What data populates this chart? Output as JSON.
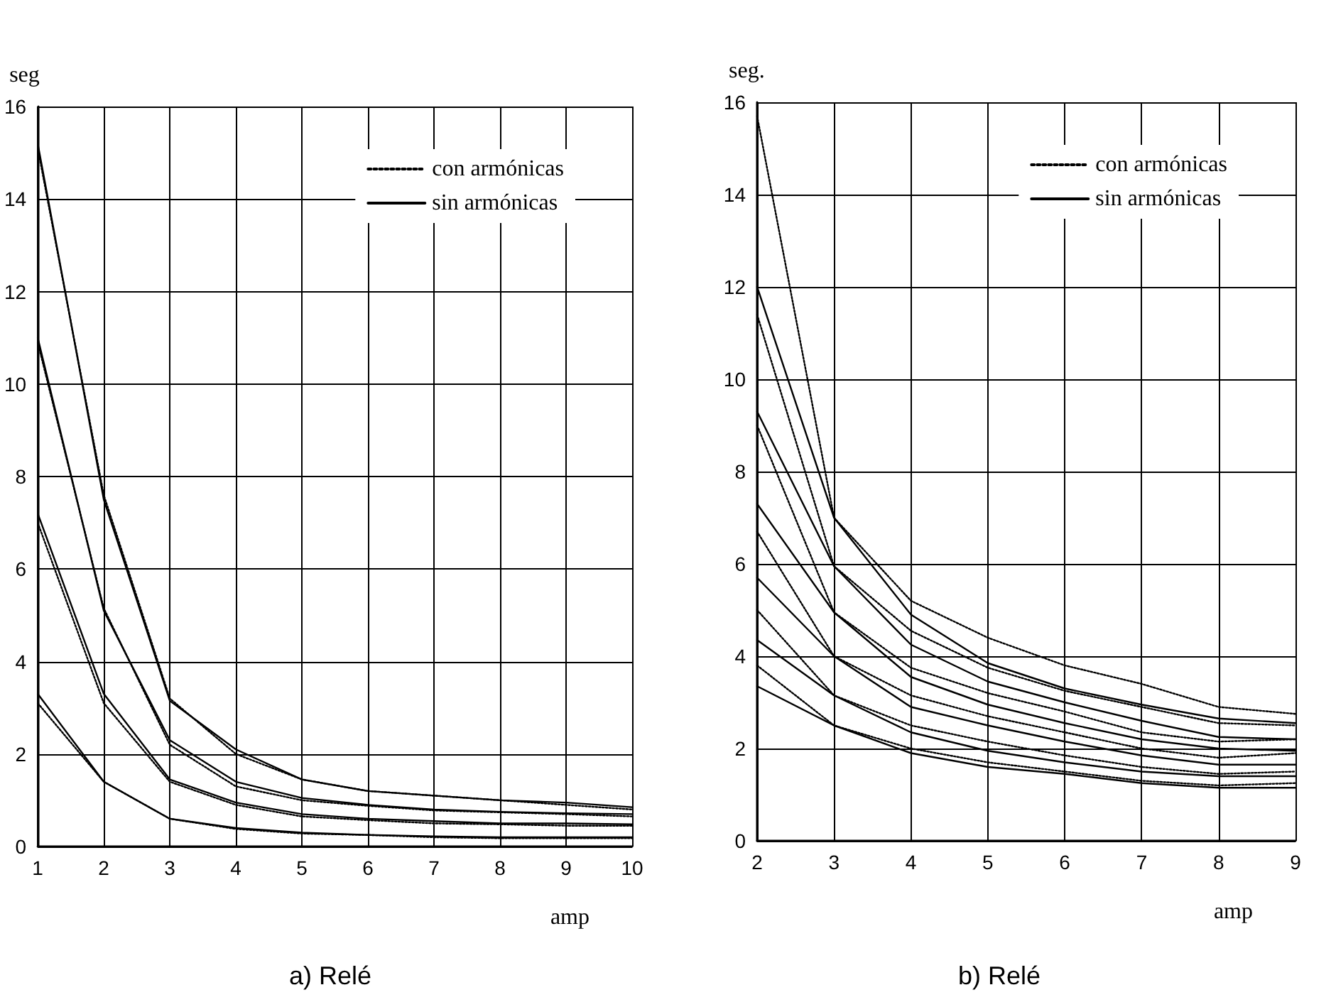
{
  "chart_data": [
    {
      "type": "line",
      "title": "a) Relé",
      "xlabel": "amp",
      "ylabel": "seg",
      "x": [
        1,
        2,
        3,
        4,
        5,
        6,
        7,
        8,
        9,
        10
      ],
      "xlim": [
        1,
        10
      ],
      "xticks": [
        1,
        2,
        3,
        4,
        5,
        6,
        7,
        8,
        9,
        10
      ],
      "ylim": [
        0,
        16
      ],
      "yticks": [
        0,
        2,
        4,
        6,
        8,
        10,
        12,
        14,
        16
      ],
      "grid": true,
      "legend": "top right",
      "marker": "none",
      "series": [
        {
          "name": "con armónicas",
          "color": "#000000",
          "line_style": "dotted",
          "values": [
            15.1,
            7.6,
            3.2,
            2.0,
            1.45,
            1.2,
            1.1,
            1.0,
            0.9,
            0.8
          ]
        },
        {
          "name": "sin armónicas",
          "color": "#000000",
          "line_style": "solid",
          "values": [
            15.2,
            7.5,
            3.15,
            2.1,
            1.45,
            1.2,
            1.1,
            1.0,
            0.95,
            0.85
          ]
        },
        {
          "color": "#000000",
          "line_style": "dotted",
          "values": [
            10.9,
            5.15,
            2.2,
            1.3,
            1.0,
            0.88,
            0.78,
            0.74,
            0.7,
            0.65
          ]
        },
        {
          "color": "#000000",
          "line_style": "solid",
          "values": [
            11.0,
            5.1,
            2.3,
            1.4,
            1.05,
            0.9,
            0.8,
            0.75,
            0.72,
            0.7
          ]
        },
        {
          "color": "#000000",
          "line_style": "dotted",
          "values": [
            7.0,
            3.1,
            1.4,
            0.9,
            0.65,
            0.57,
            0.5,
            0.48,
            0.45,
            0.45
          ]
        },
        {
          "color": "#000000",
          "line_style": "solid",
          "values": [
            7.2,
            3.3,
            1.45,
            0.95,
            0.7,
            0.6,
            0.55,
            0.5,
            0.5,
            0.48
          ]
        },
        {
          "color": "#000000",
          "line_style": "dotted",
          "values": [
            3.1,
            1.4,
            0.6,
            0.38,
            0.28,
            0.25,
            0.2,
            0.18,
            0.18,
            0.18
          ]
        },
        {
          "color": "#000000",
          "line_style": "solid",
          "values": [
            3.3,
            1.4,
            0.6,
            0.4,
            0.3,
            0.25,
            0.22,
            0.2,
            0.2,
            0.2
          ]
        }
      ]
    },
    {
      "type": "line",
      "title": "b) Relé",
      "xlabel": "amp",
      "ylabel": "seg.",
      "x": [
        2,
        3,
        4,
        5,
        6,
        7,
        8,
        9
      ],
      "xlim": [
        2,
        9
      ],
      "xticks": [
        2,
        3,
        4,
        5,
        6,
        7,
        8,
        9
      ],
      "ylim": [
        0,
        16
      ],
      "yticks": [
        0,
        2,
        4,
        6,
        8,
        10,
        12,
        14,
        16
      ],
      "grid": true,
      "legend": "top right",
      "marker": "none",
      "series": [
        {
          "name": "con armónicas",
          "color": "#000000",
          "line_style": "dotted",
          "values": [
            15.7,
            7.0,
            5.2,
            4.4,
            3.8,
            3.4,
            2.9,
            2.75
          ]
        },
        {
          "name": "sin armónicas",
          "color": "#000000",
          "line_style": "solid",
          "values": [
            12.0,
            7.0,
            4.9,
            3.85,
            3.3,
            2.95,
            2.65,
            2.55
          ]
        },
        {
          "color": "#000000",
          "line_style": "dotted",
          "values": [
            11.4,
            5.95,
            4.55,
            3.75,
            3.25,
            2.9,
            2.55,
            2.5
          ]
        },
        {
          "color": "#000000",
          "line_style": "solid",
          "values": [
            9.3,
            5.95,
            4.25,
            3.45,
            3.0,
            2.6,
            2.25,
            2.2
          ]
        },
        {
          "color": "#000000",
          "line_style": "dotted",
          "values": [
            9.0,
            4.95,
            3.75,
            3.2,
            2.8,
            2.35,
            2.15,
            2.2
          ]
        },
        {
          "color": "#000000",
          "line_style": "solid",
          "values": [
            7.3,
            4.95,
            3.55,
            2.95,
            2.55,
            2.2,
            2.0,
            1.95
          ]
        },
        {
          "color": "#000000",
          "line_style": "dotted",
          "values": [
            6.7,
            4.0,
            3.15,
            2.7,
            2.35,
            2.0,
            1.8,
            1.9
          ]
        },
        {
          "color": "#000000",
          "line_style": "solid",
          "values": [
            5.7,
            4.0,
            2.9,
            2.5,
            2.15,
            1.85,
            1.65,
            1.65
          ]
        },
        {
          "color": "#000000",
          "line_style": "dotted",
          "values": [
            5.0,
            3.15,
            2.5,
            2.15,
            1.85,
            1.6,
            1.45,
            1.5
          ]
        },
        {
          "color": "#000000",
          "line_style": "solid",
          "values": [
            4.35,
            3.15,
            2.35,
            1.95,
            1.7,
            1.5,
            1.4,
            1.4
          ]
        },
        {
          "color": "#000000",
          "line_style": "dotted",
          "values": [
            3.8,
            2.5,
            2.0,
            1.7,
            1.5,
            1.3,
            1.2,
            1.25
          ]
        },
        {
          "color": "#000000",
          "line_style": "solid",
          "values": [
            3.35,
            2.5,
            1.9,
            1.6,
            1.45,
            1.25,
            1.15,
            1.15
          ]
        }
      ]
    }
  ]
}
